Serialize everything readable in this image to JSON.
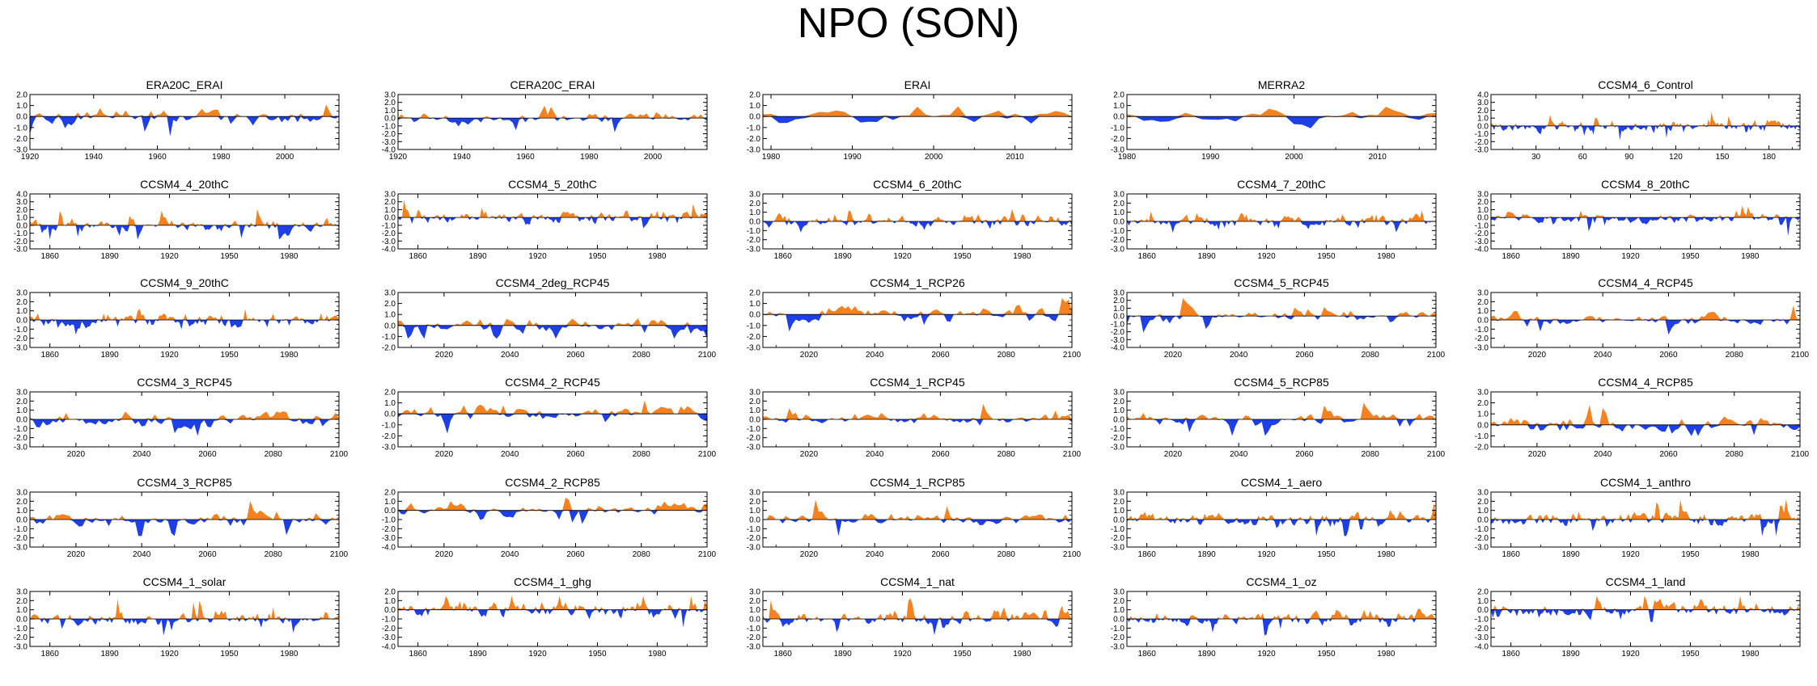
{
  "figure": {
    "title": "NPO (SON)"
  },
  "colors": {
    "positive": "#f5821f",
    "negative": "#1f3fe6",
    "axis": "#000000"
  },
  "chart_data": [
    {
      "name": "ERA20C_ERAI",
      "type": "area",
      "x_start": 1920,
      "x_end": 2017,
      "ylim": [
        -3,
        2
      ],
      "yticks": [
        "2.0",
        "1.0",
        "0.0",
        "-1.0",
        "-2.0",
        "-3.0"
      ],
      "xticks": [
        1920,
        1940,
        1960,
        1980,
        2000
      ]
    },
    {
      "name": "CERA20C_ERAI",
      "type": "area",
      "x_start": 1920,
      "x_end": 2017,
      "ylim": [
        -4,
        3
      ],
      "yticks": [
        "3.0",
        "2.0",
        "1.0",
        "0.0",
        "-1.0",
        "-2.0",
        "-3.0",
        "-4.0"
      ],
      "xticks": [
        1920,
        1940,
        1960,
        1980,
        2000
      ]
    },
    {
      "name": "ERAI",
      "type": "area",
      "x_start": 1979,
      "x_end": 2017,
      "ylim": [
        -3,
        2
      ],
      "yticks": [
        "2.0",
        "1.0",
        "0.0",
        "-1.0",
        "-2.0",
        "-3.0"
      ],
      "xticks": [
        1980,
        1990,
        2000,
        2010
      ]
    },
    {
      "name": "MERRA2",
      "type": "area",
      "x_start": 1980,
      "x_end": 2017,
      "ylim": [
        -3,
        2
      ],
      "yticks": [
        "2.0",
        "1.0",
        "0.0",
        "-1.0",
        "-2.0",
        "-3.0"
      ],
      "xticks": [
        1980,
        1990,
        2000,
        2010
      ]
    },
    {
      "name": "CCSM4_6_Control",
      "type": "area",
      "x_start": 1,
      "x_end": 200,
      "ylim": [
        -3,
        4
      ],
      "yticks": [
        "4.0",
        "3.0",
        "2.0",
        "1.0",
        "0.0",
        "-1.0",
        "-2.0",
        "-3.0"
      ],
      "xticks": [
        30,
        60,
        90,
        120,
        150,
        180
      ]
    },
    {
      "name": "CCSM4_4_20thC",
      "type": "area",
      "x_start": 1850,
      "x_end": 2005,
      "ylim": [
        -3,
        4
      ],
      "yticks": [
        "4.0",
        "3.0",
        "2.0",
        "1.0",
        "0.0",
        "-1.0",
        "-2.0",
        "-3.0"
      ],
      "xticks": [
        1860,
        1890,
        1920,
        1950,
        1980
      ]
    },
    {
      "name": "CCSM4_5_20thC",
      "type": "area",
      "x_start": 1850,
      "x_end": 2005,
      "ylim": [
        -4,
        3
      ],
      "yticks": [
        "3.0",
        "2.0",
        "1.0",
        "0.0",
        "-1.0",
        "-2.0",
        "-3.0",
        "-4.0"
      ],
      "xticks": [
        1860,
        1890,
        1920,
        1950,
        1980
      ]
    },
    {
      "name": "CCSM4_6_20thC",
      "type": "area",
      "x_start": 1850,
      "x_end": 2005,
      "ylim": [
        -3,
        3
      ],
      "yticks": [
        "3.0",
        "2.0",
        "1.0",
        "0.0",
        "-1.0",
        "-2.0",
        "-3.0"
      ],
      "xticks": [
        1860,
        1890,
        1920,
        1950,
        1980
      ]
    },
    {
      "name": "CCSM4_7_20thC",
      "type": "area",
      "x_start": 1850,
      "x_end": 2005,
      "ylim": [
        -3,
        3
      ],
      "yticks": [
        "3.0",
        "2.0",
        "1.0",
        "0.0",
        "-1.0",
        "-2.0",
        "-3.0"
      ],
      "xticks": [
        1860,
        1890,
        1920,
        1950,
        1980
      ]
    },
    {
      "name": "CCSM4_8_20thC",
      "type": "area",
      "x_start": 1850,
      "x_end": 2005,
      "ylim": [
        -4,
        3
      ],
      "yticks": [
        "3.0",
        "2.0",
        "1.0",
        "0.0",
        "-1.0",
        "-2.0",
        "-3.0",
        "-4.0"
      ],
      "xticks": [
        1860,
        1890,
        1920,
        1950,
        1980
      ]
    },
    {
      "name": "CCSM4_9_20thC",
      "type": "area",
      "x_start": 1850,
      "x_end": 2005,
      "ylim": [
        -3,
        3
      ],
      "yticks": [
        "3.0",
        "2.0",
        "1.0",
        "0.0",
        "-1.0",
        "-2.0",
        "-3.0"
      ],
      "xticks": [
        1860,
        1890,
        1920,
        1950,
        1980
      ]
    },
    {
      "name": "CCSM4_2deg_RCP45",
      "type": "area",
      "x_start": 2006,
      "x_end": 2100,
      "ylim": [
        -2,
        3
      ],
      "yticks": [
        "3.0",
        "2.0",
        "1.0",
        "0.0",
        "-1.0",
        "-2.0"
      ],
      "xticks": [
        2020,
        2040,
        2060,
        2080,
        2100
      ]
    },
    {
      "name": "CCSM4_1_RCP26",
      "type": "area",
      "x_start": 2006,
      "x_end": 2100,
      "ylim": [
        -3,
        2
      ],
      "yticks": [
        "2.0",
        "1.0",
        "0.0",
        "-1.0",
        "-2.0",
        "-3.0"
      ],
      "xticks": [
        2020,
        2040,
        2060,
        2080,
        2100
      ]
    },
    {
      "name": "CCSM4_5_RCP45",
      "type": "area",
      "x_start": 2006,
      "x_end": 2100,
      "ylim": [
        -4,
        3
      ],
      "yticks": [
        "3.0",
        "2.0",
        "1.0",
        "0.0",
        "-1.0",
        "-2.0",
        "-3.0",
        "-4.0"
      ],
      "xticks": [
        2020,
        2040,
        2060,
        2080,
        2100
      ]
    },
    {
      "name": "CCSM4_4_RCP45",
      "type": "area",
      "x_start": 2006,
      "x_end": 2100,
      "ylim": [
        -3,
        3
      ],
      "yticks": [
        "3.0",
        "2.0",
        "1.0",
        "0.0",
        "-1.0",
        "-2.0",
        "-3.0"
      ],
      "xticks": [
        2020,
        2040,
        2060,
        2080,
        2100
      ]
    },
    {
      "name": "CCSM4_3_RCP45",
      "type": "area",
      "x_start": 2006,
      "x_end": 2100,
      "ylim": [
        -3,
        3
      ],
      "yticks": [
        "3.0",
        "2.0",
        "1.0",
        "0.0",
        "-1.0",
        "-2.0",
        "-3.0"
      ],
      "xticks": [
        2020,
        2040,
        2060,
        2080,
        2100
      ]
    },
    {
      "name": "CCSM4_2_RCP45",
      "type": "area",
      "x_start": 2006,
      "x_end": 2100,
      "ylim": [
        -3,
        2
      ],
      "yticks": [
        "2.0",
        "1.0",
        "0.0",
        "-1.0",
        "-2.0",
        "-3.0"
      ],
      "xticks": [
        2020,
        2040,
        2060,
        2080,
        2100
      ]
    },
    {
      "name": "CCSM4_1_RCP45",
      "type": "area",
      "x_start": 2006,
      "x_end": 2100,
      "ylim": [
        -3,
        3
      ],
      "yticks": [
        "3.0",
        "2.0",
        "1.0",
        "0.0",
        "-1.0",
        "-2.0",
        "-3.0"
      ],
      "xticks": [
        2020,
        2040,
        2060,
        2080,
        2100
      ]
    },
    {
      "name": "CCSM4_5_RCP85",
      "type": "area",
      "x_start": 2006,
      "x_end": 2100,
      "ylim": [
        -3,
        3
      ],
      "yticks": [
        "3.0",
        "2.0",
        "1.0",
        "0.0",
        "-1.0",
        "-2.0",
        "-3.0"
      ],
      "xticks": [
        2020,
        2040,
        2060,
        2080,
        2100
      ]
    },
    {
      "name": "CCSM4_4_RCP85",
      "type": "area",
      "x_start": 2006,
      "x_end": 2100,
      "ylim": [
        -2,
        3
      ],
      "yticks": [
        "3.0",
        "2.0",
        "1.0",
        "0.0",
        "-1.0",
        "-2.0"
      ],
      "xticks": [
        2020,
        2040,
        2060,
        2080,
        2100
      ]
    },
    {
      "name": "CCSM4_3_RCP85",
      "type": "area",
      "x_start": 2006,
      "x_end": 2100,
      "ylim": [
        -3,
        3
      ],
      "yticks": [
        "3.0",
        "2.0",
        "1.0",
        "0.0",
        "-1.0",
        "-2.0",
        "-3.0"
      ],
      "xticks": [
        2020,
        2040,
        2060,
        2080,
        2100
      ]
    },
    {
      "name": "CCSM4_2_RCP85",
      "type": "area",
      "x_start": 2006,
      "x_end": 2100,
      "ylim": [
        -4,
        2
      ],
      "yticks": [
        "2.0",
        "1.0",
        "0.0",
        "-1.0",
        "-2.0",
        "-3.0",
        "-4.0"
      ],
      "xticks": [
        2020,
        2040,
        2060,
        2080,
        2100
      ]
    },
    {
      "name": "CCSM4_1_RCP85",
      "type": "area",
      "x_start": 2006,
      "x_end": 2100,
      "ylim": [
        -3,
        3
      ],
      "yticks": [
        "3.0",
        "2.0",
        "1.0",
        "0.0",
        "-1.0",
        "-2.0",
        "-3.0"
      ],
      "xticks": [
        2020,
        2040,
        2060,
        2080,
        2100
      ]
    },
    {
      "name": "CCSM4_1_aero",
      "type": "area",
      "x_start": 1850,
      "x_end": 2005,
      "ylim": [
        -3,
        3
      ],
      "yticks": [
        "3.0",
        "2.0",
        "1.0",
        "0.0",
        "-1.0",
        "-2.0",
        "-3.0"
      ],
      "xticks": [
        1860,
        1890,
        1920,
        1950,
        1980
      ]
    },
    {
      "name": "CCSM4_1_anthro",
      "type": "area",
      "x_start": 1850,
      "x_end": 2005,
      "ylim": [
        -3,
        3
      ],
      "yticks": [
        "3.0",
        "2.0",
        "1.0",
        "0.0",
        "-1.0",
        "-2.0",
        "-3.0"
      ],
      "xticks": [
        1860,
        1890,
        1920,
        1950,
        1980
      ]
    },
    {
      "name": "CCSM4_1_solar",
      "type": "area",
      "x_start": 1850,
      "x_end": 2005,
      "ylim": [
        -3,
        3
      ],
      "yticks": [
        "3.0",
        "2.0",
        "1.0",
        "0.0",
        "-1.0",
        "-2.0",
        "-3.0"
      ],
      "xticks": [
        1860,
        1890,
        1920,
        1950,
        1980
      ]
    },
    {
      "name": "CCSM4_1_ghg",
      "type": "area",
      "x_start": 1850,
      "x_end": 2005,
      "ylim": [
        -4,
        2
      ],
      "yticks": [
        "2.0",
        "1.0",
        "0.0",
        "-1.0",
        "-2.0",
        "-3.0",
        "-4.0"
      ],
      "xticks": [
        1860,
        1890,
        1920,
        1950,
        1980
      ]
    },
    {
      "name": "CCSM4_1_nat",
      "type": "area",
      "x_start": 1850,
      "x_end": 2005,
      "ylim": [
        -3,
        3
      ],
      "yticks": [
        "3.0",
        "2.0",
        "1.0",
        "0.0",
        "-1.0",
        "-2.0",
        "-3.0"
      ],
      "xticks": [
        1860,
        1890,
        1920,
        1950,
        1980
      ]
    },
    {
      "name": "CCSM4_1_oz",
      "type": "area",
      "x_start": 1850,
      "x_end": 2005,
      "ylim": [
        -3,
        3
      ],
      "yticks": [
        "3.0",
        "2.0",
        "1.0",
        "0.0",
        "-1.0",
        "-2.0",
        "-3.0"
      ],
      "xticks": [
        1860,
        1890,
        1920,
        1950,
        1980
      ]
    },
    {
      "name": "CCSM4_1_land",
      "type": "area",
      "x_start": 1850,
      "x_end": 2005,
      "ylim": [
        -4,
        2
      ],
      "yticks": [
        "2.0",
        "1.0",
        "0.0",
        "-1.0",
        "-2.0",
        "-3.0",
        "-4.0"
      ],
      "xticks": [
        1860,
        1890,
        1920,
        1950,
        1980
      ]
    }
  ]
}
